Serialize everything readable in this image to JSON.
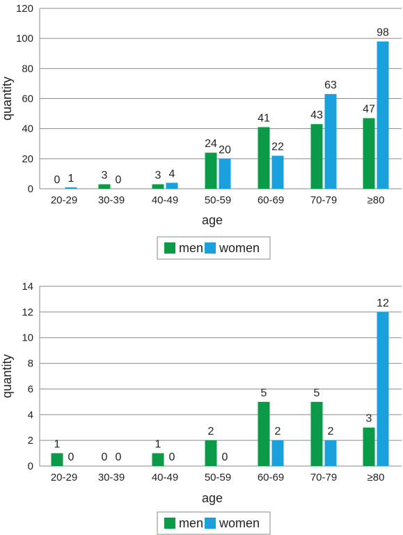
{
  "chart_data": [
    {
      "type": "bar",
      "categories": [
        "20-29",
        "30-39",
        "40-49",
        "50-59",
        "60-69",
        "70-79",
        "≥80"
      ],
      "series": [
        {
          "name": "men",
          "color": "#0a9a48",
          "values": [
            0,
            3,
            3,
            24,
            41,
            43,
            47
          ]
        },
        {
          "name": "women",
          "color": "#1aa0dc",
          "values": [
            1,
            0,
            4,
            20,
            22,
            63,
            98
          ]
        }
      ],
      "xlabel": "age",
      "ylabel": "quantity",
      "ylim": [
        0,
        120
      ],
      "yticks": [
        0,
        20,
        40,
        60,
        80,
        100,
        120
      ],
      "grid": true,
      "legend": "bottom"
    },
    {
      "type": "bar",
      "categories": [
        "20-29",
        "30-39",
        "40-49",
        "50-59",
        "60-69",
        "70-79",
        "≥80"
      ],
      "series": [
        {
          "name": "men",
          "color": "#0a9a48",
          "values": [
            1,
            0,
            1,
            2,
            5,
            5,
            3
          ]
        },
        {
          "name": "women",
          "color": "#1aa0dc",
          "values": [
            0,
            0,
            0,
            0,
            2,
            2,
            12
          ]
        }
      ],
      "xlabel": "age",
      "ylabel": "quantity",
      "ylim": [
        0,
        14
      ],
      "yticks": [
        0,
        2,
        4,
        6,
        8,
        10,
        12,
        14
      ],
      "grid": true,
      "legend": "bottom"
    }
  ]
}
